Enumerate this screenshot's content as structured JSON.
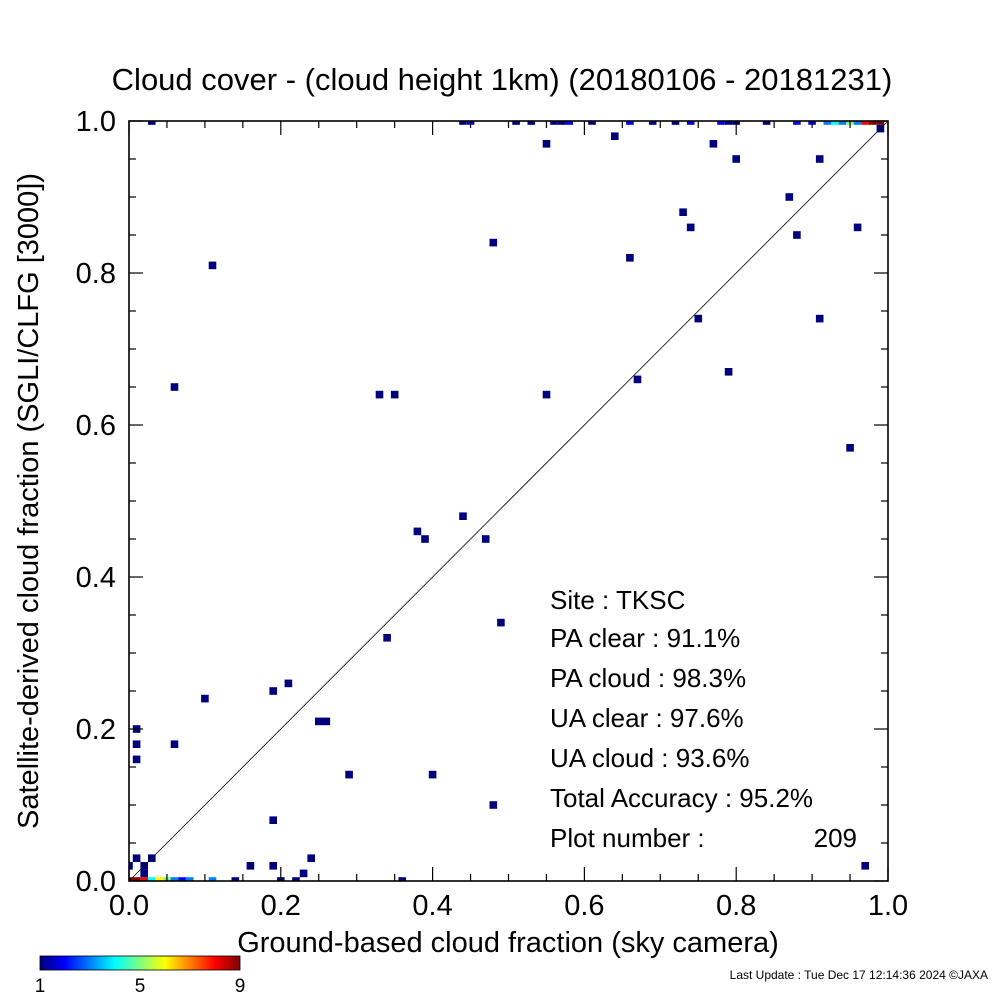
{
  "chart_data": {
    "type": "scatter",
    "title": "Cloud cover - (cloud height 1km)  (20180106 - 20181231)",
    "xlabel": "Ground-based cloud fraction (sky camera)",
    "ylabel": "Satellite-derived cloud fraction (SGLI/CLFG [3000])",
    "xlim": [
      0.0,
      1.0
    ],
    "ylim": [
      0.0,
      1.0
    ],
    "x_ticks": [
      "0.0",
      "0.2",
      "0.4",
      "0.6",
      "0.8",
      "1.0"
    ],
    "y_ticks": [
      "0.0",
      "0.2",
      "0.4",
      "0.6",
      "0.8",
      "1.0"
    ],
    "grid": false,
    "reference_line": "1:1 diagonal",
    "bin_size": 0.01,
    "colorbar": {
      "min_label": "1",
      "mid_label": "5",
      "max_label": "9",
      "colors": [
        "#00007f",
        "#0000ff",
        "#007fff",
        "#00ffff",
        "#7fff7f",
        "#ffff00",
        "#ff7f00",
        "#ff0000",
        "#7f0000"
      ]
    },
    "points": [
      {
        "x": 0.0,
        "y": 0.0,
        "count": 9
      },
      {
        "x": 0.01,
        "y": 0.0,
        "count": 9
      },
      {
        "x": 0.02,
        "y": 0.0,
        "count": 8
      },
      {
        "x": 0.03,
        "y": 0.0,
        "count": 4
      },
      {
        "x": 0.04,
        "y": 0.0,
        "count": 6
      },
      {
        "x": 0.05,
        "y": 0.0,
        "count": 5
      },
      {
        "x": 0.06,
        "y": 0.0,
        "count": 3
      },
      {
        "x": 0.07,
        "y": 0.0,
        "count": 2
      },
      {
        "x": 0.08,
        "y": 0.0,
        "count": 3
      },
      {
        "x": 0.11,
        "y": 0.0,
        "count": 3
      },
      {
        "x": 0.14,
        "y": 0.0,
        "count": 1
      },
      {
        "x": 0.2,
        "y": 0.0,
        "count": 1
      },
      {
        "x": 0.22,
        "y": 0.0,
        "count": 1
      },
      {
        "x": 0.36,
        "y": 0.0,
        "count": 1
      },
      {
        "x": 0.0,
        "y": 0.02,
        "count": 1
      },
      {
        "x": 0.01,
        "y": 0.03,
        "count": 1
      },
      {
        "x": 0.02,
        "y": 0.02,
        "count": 1
      },
      {
        "x": 0.02,
        "y": 0.01,
        "count": 1
      },
      {
        "x": 0.03,
        "y": 0.03,
        "count": 1
      },
      {
        "x": 0.16,
        "y": 0.02,
        "count": 1
      },
      {
        "x": 0.19,
        "y": 0.02,
        "count": 1
      },
      {
        "x": 0.23,
        "y": 0.01,
        "count": 1
      },
      {
        "x": 0.24,
        "y": 0.03,
        "count": 1
      },
      {
        "x": 0.97,
        "y": 0.02,
        "count": 1
      },
      {
        "x": 0.19,
        "y": 0.08,
        "count": 1
      },
      {
        "x": 0.48,
        "y": 0.1,
        "count": 1
      },
      {
        "x": 0.29,
        "y": 0.14,
        "count": 1
      },
      {
        "x": 0.4,
        "y": 0.14,
        "count": 1
      },
      {
        "x": 0.01,
        "y": 0.16,
        "count": 1
      },
      {
        "x": 0.01,
        "y": 0.18,
        "count": 1
      },
      {
        "x": 0.06,
        "y": 0.18,
        "count": 1
      },
      {
        "x": 0.01,
        "y": 0.2,
        "count": 1
      },
      {
        "x": 0.25,
        "y": 0.21,
        "count": 1
      },
      {
        "x": 0.26,
        "y": 0.21,
        "count": 1
      },
      {
        "x": 0.1,
        "y": 0.24,
        "count": 1
      },
      {
        "x": 0.19,
        "y": 0.25,
        "count": 1
      },
      {
        "x": 0.21,
        "y": 0.26,
        "count": 1
      },
      {
        "x": 0.34,
        "y": 0.32,
        "count": 1
      },
      {
        "x": 0.49,
        "y": 0.34,
        "count": 1
      },
      {
        "x": 0.39,
        "y": 0.45,
        "count": 1
      },
      {
        "x": 0.38,
        "y": 0.46,
        "count": 1
      },
      {
        "x": 0.47,
        "y": 0.45,
        "count": 1
      },
      {
        "x": 0.44,
        "y": 0.48,
        "count": 1
      },
      {
        "x": 0.95,
        "y": 0.57,
        "count": 1
      },
      {
        "x": 0.33,
        "y": 0.64,
        "count": 1
      },
      {
        "x": 0.35,
        "y": 0.64,
        "count": 1
      },
      {
        "x": 0.55,
        "y": 0.64,
        "count": 1
      },
      {
        "x": 0.06,
        "y": 0.65,
        "count": 1
      },
      {
        "x": 0.67,
        "y": 0.66,
        "count": 1
      },
      {
        "x": 0.79,
        "y": 0.67,
        "count": 1
      },
      {
        "x": 0.75,
        "y": 0.74,
        "count": 1
      },
      {
        "x": 0.91,
        "y": 0.74,
        "count": 1
      },
      {
        "x": 0.11,
        "y": 0.81,
        "count": 1
      },
      {
        "x": 0.66,
        "y": 0.82,
        "count": 1
      },
      {
        "x": 0.48,
        "y": 0.84,
        "count": 1
      },
      {
        "x": 0.88,
        "y": 0.85,
        "count": 1
      },
      {
        "x": 0.74,
        "y": 0.86,
        "count": 1
      },
      {
        "x": 0.96,
        "y": 0.86,
        "count": 1
      },
      {
        "x": 0.73,
        "y": 0.88,
        "count": 1
      },
      {
        "x": 0.87,
        "y": 0.9,
        "count": 1
      },
      {
        "x": 0.8,
        "y": 0.95,
        "count": 1
      },
      {
        "x": 0.91,
        "y": 0.95,
        "count": 1
      },
      {
        "x": 0.55,
        "y": 0.97,
        "count": 1
      },
      {
        "x": 0.77,
        "y": 0.97,
        "count": 1
      },
      {
        "x": 0.64,
        "y": 0.98,
        "count": 1
      },
      {
        "x": 0.99,
        "y": 0.99,
        "count": 1
      },
      {
        "x": 0.03,
        "y": 1.0,
        "count": 1
      },
      {
        "x": 0.44,
        "y": 1.0,
        "count": 1
      },
      {
        "x": 0.45,
        "y": 1.0,
        "count": 2
      },
      {
        "x": 0.51,
        "y": 1.0,
        "count": 1
      },
      {
        "x": 0.53,
        "y": 1.0,
        "count": 1
      },
      {
        "x": 0.56,
        "y": 1.0,
        "count": 1
      },
      {
        "x": 0.57,
        "y": 1.0,
        "count": 1
      },
      {
        "x": 0.58,
        "y": 1.0,
        "count": 2
      },
      {
        "x": 0.61,
        "y": 1.0,
        "count": 1
      },
      {
        "x": 0.66,
        "y": 1.0,
        "count": 2
      },
      {
        "x": 0.69,
        "y": 1.0,
        "count": 1
      },
      {
        "x": 0.72,
        "y": 1.0,
        "count": 1
      },
      {
        "x": 0.74,
        "y": 1.0,
        "count": 2
      },
      {
        "x": 0.78,
        "y": 1.0,
        "count": 2
      },
      {
        "x": 0.79,
        "y": 1.0,
        "count": 1
      },
      {
        "x": 0.8,
        "y": 1.0,
        "count": 1
      },
      {
        "x": 0.84,
        "y": 1.0,
        "count": 1
      },
      {
        "x": 0.88,
        "y": 1.0,
        "count": 2
      },
      {
        "x": 0.9,
        "y": 1.0,
        "count": 2
      },
      {
        "x": 0.92,
        "y": 1.0,
        "count": 3
      },
      {
        "x": 0.93,
        "y": 1.0,
        "count": 4
      },
      {
        "x": 0.94,
        "y": 1.0,
        "count": 3
      },
      {
        "x": 0.95,
        "y": 1.0,
        "count": 5
      },
      {
        "x": 0.96,
        "y": 1.0,
        "count": 3
      },
      {
        "x": 0.97,
        "y": 1.0,
        "count": 8
      },
      {
        "x": 0.98,
        "y": 1.0,
        "count": 9
      },
      {
        "x": 0.99,
        "y": 1.0,
        "count": 9
      }
    ]
  },
  "stats": {
    "site": "Site : TKSC",
    "pa_clear": "PA clear :  91.1%",
    "pa_cloud": "PA cloud :  98.3%",
    "ua_clear": "UA clear :  97.6%",
    "ua_cloud": "UA cloud :  93.6%",
    "total_accuracy": "Total Accuracy :  95.2%",
    "plot_number_label": "Plot number :",
    "plot_number_value": "209"
  },
  "footer": {
    "last_update": "Last Update : Tue Dec 17 12:14:36 2024  ©JAXA"
  }
}
